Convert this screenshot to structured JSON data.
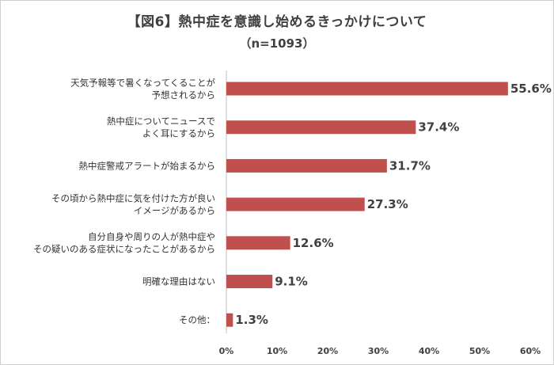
{
  "chart_data": {
    "type": "bar",
    "orientation": "horizontal",
    "title": "【図6】熱中症を意識し始めるきっかけについて",
    "subtitle": "（n=1093）",
    "categories": [
      [
        "天気予報等で暑くなってくることが",
        "予想されるから"
      ],
      [
        "熱中症についてニュースで",
        "よく耳にするから"
      ],
      [
        "熱中症警戒アラートが始まるから"
      ],
      [
        "その頃から熱中症に気を付けた方が良い",
        "イメージがあるから"
      ],
      [
        "自分自身や周りの人が熱中症や",
        "その疑いのある症状になったことがあるから"
      ],
      [
        "明確な理由はない"
      ],
      [
        "その他："
      ]
    ],
    "values": [
      55.6,
      37.4,
      31.7,
      27.3,
      12.6,
      9.1,
      1.3
    ],
    "value_labels": [
      "55.6%",
      "37.4%",
      "31.7%",
      "27.3%",
      "12.6%",
      "9.1%",
      "1.3%"
    ],
    "xlim": [
      0,
      60
    ],
    "xticks": [
      "0%",
      "10%",
      "20%",
      "30%",
      "40%",
      "50%",
      "60%"
    ],
    "bar_color": "#c0504d",
    "grid": false
  }
}
